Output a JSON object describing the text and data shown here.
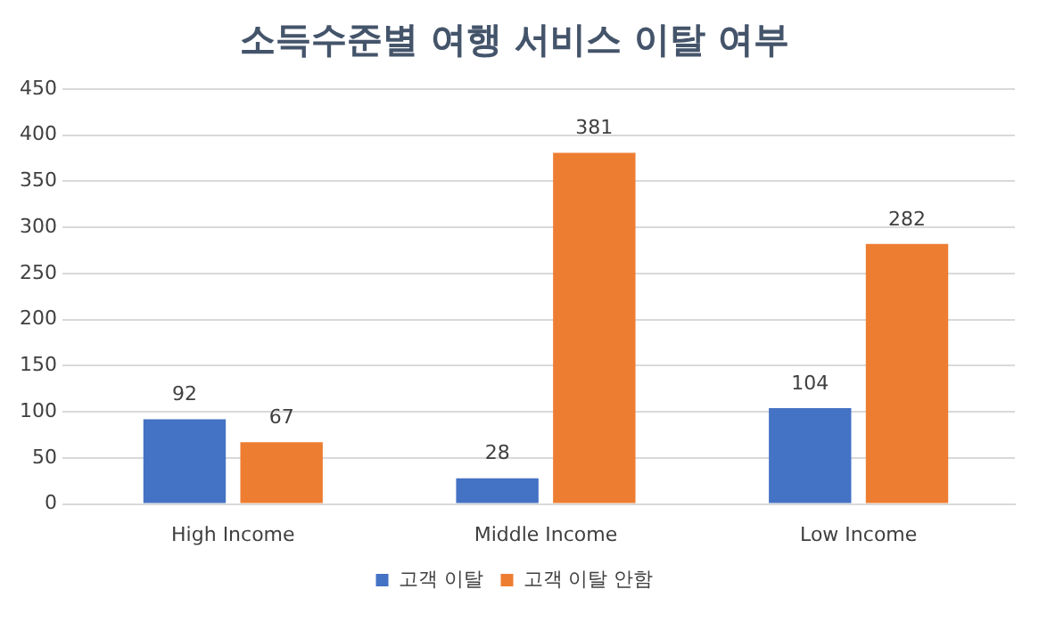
{
  "chart_data": {
    "type": "bar",
    "title": "소득수준별 여행 서비스 이탈 여부",
    "categories": [
      "High Income",
      "Middle Income",
      "Low Income"
    ],
    "series": [
      {
        "name": "고객 이탈",
        "color": "#4472c4",
        "values": [
          92,
          28,
          104
        ]
      },
      {
        "name": "고객 이탈 안함",
        "color": "#ed7d31",
        "values": [
          67,
          381,
          282
        ]
      }
    ],
    "ylim": [
      0,
      450
    ],
    "yticks": [
      0,
      50,
      100,
      150,
      200,
      250,
      300,
      350,
      400,
      450
    ],
    "grid": "y",
    "legend": "bottom",
    "data_labels": true
  }
}
